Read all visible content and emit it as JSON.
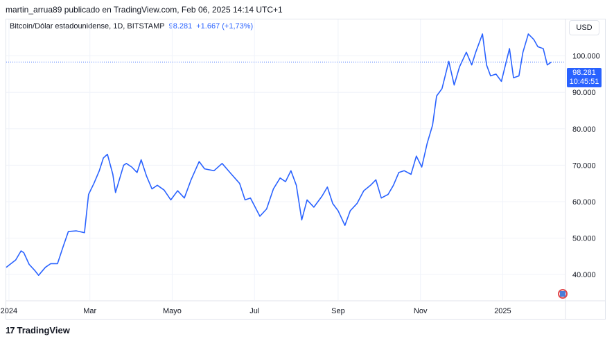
{
  "header": {
    "attribution": "martin_arrua89 publicado en TradingView.com, Feb 06, 2025 14:14 UTC+1"
  },
  "legend": {
    "symbol": "Bitcoin/Dólar estadounidense, 1D, BITSTAMP",
    "price": "98.281",
    "change": "+1.667 (+1,73%)"
  },
  "toolbar": {
    "currency": "USD"
  },
  "price_badge": {
    "price": "98.281",
    "countdown": "10:45:51"
  },
  "footer": {
    "logo_text": "TradingView"
  },
  "colors": {
    "line": "#2962ff",
    "grid": "#f0f3fa",
    "axis_text": "#131722"
  },
  "chart_data": {
    "type": "line",
    "title": "",
    "series": [
      {
        "name": "",
        "x": [
          "2023-12-30",
          "2024-01-06",
          "2024-01-10",
          "2024-01-12",
          "2024-01-16",
          "2024-01-20",
          "2024-01-23",
          "2024-01-28",
          "2024-02-01",
          "2024-02-06",
          "2024-02-10",
          "2024-02-14",
          "2024-02-20",
          "2024-02-26",
          "2024-02-29",
          "2024-03-04",
          "2024-03-08",
          "2024-03-11",
          "2024-03-14",
          "2024-03-18",
          "2024-03-20",
          "2024-03-26",
          "2024-03-28",
          "2024-04-01",
          "2024-04-05",
          "2024-04-08",
          "2024-04-12",
          "2024-04-16",
          "2024-04-20",
          "2024-04-25",
          "2024-04-30",
          "2024-05-05",
          "2024-05-10",
          "2024-05-15",
          "2024-05-21",
          "2024-05-25",
          "2024-06-01",
          "2024-06-07",
          "2024-06-14",
          "2024-06-20",
          "2024-06-24",
          "2024-06-28",
          "2024-07-05",
          "2024-07-10",
          "2024-07-15",
          "2024-07-20",
          "2024-07-24",
          "2024-07-28",
          "2024-08-01",
          "2024-08-05",
          "2024-08-09",
          "2024-08-14",
          "2024-08-20",
          "2024-08-24",
          "2024-08-28",
          "2024-09-01",
          "2024-09-06",
          "2024-09-10",
          "2024-09-15",
          "2024-09-20",
          "2024-09-25",
          "2024-09-29",
          "2024-10-03",
          "2024-10-08",
          "2024-10-12",
          "2024-10-16",
          "2024-10-20",
          "2024-10-25",
          "2024-10-29",
          "2024-11-02",
          "2024-11-06",
          "2024-11-10",
          "2024-11-13",
          "2024-11-17",
          "2024-11-22",
          "2024-11-26",
          "2024-11-30",
          "2024-12-05",
          "2024-12-09",
          "2024-12-12",
          "2024-12-17",
          "2024-12-20",
          "2024-12-23",
          "2024-12-27",
          "2024-12-31",
          "2025-01-06",
          "2025-01-09",
          "2025-01-13",
          "2025-01-16",
          "2025-01-20",
          "2025-01-24",
          "2025-01-27",
          "2025-01-31",
          "2025-02-03",
          "2025-02-06"
        ],
        "y": [
          42000,
          44000,
          46500,
          46000,
          42800,
          41200,
          39800,
          42000,
          43000,
          43000,
          47500,
          51800,
          52000,
          51500,
          62000,
          65000,
          68500,
          72000,
          73000,
          67500,
          62500,
          70000,
          70500,
          69500,
          68000,
          71500,
          67000,
          63500,
          64500,
          63200,
          60500,
          63000,
          61000,
          66000,
          71000,
          69000,
          68500,
          70500,
          67500,
          65000,
          60500,
          61000,
          56000,
          58000,
          63500,
          66500,
          65500,
          68500,
          64500,
          55000,
          60500,
          58500,
          61500,
          64000,
          59500,
          57500,
          53500,
          57500,
          59500,
          63000,
          64500,
          66000,
          61000,
          62000,
          64500,
          68000,
          68500,
          67500,
          72500,
          69500,
          76000,
          81000,
          89000,
          91000,
          98500,
          92000,
          97000,
          101000,
          97500,
          101000,
          106000,
          97500,
          94500,
          95000,
          93000,
          102000,
          94000,
          94500,
          101000,
          106000,
          104500,
          102500,
          102000,
          97500,
          98281
        ]
      }
    ],
    "x_tick_labels": [
      "2024",
      "Mar",
      "Mayo",
      "Jul",
      "Sep",
      "Nov",
      "2025"
    ],
    "y_ticks": [
      40000,
      50000,
      60000,
      70000,
      80000,
      90000,
      100000
    ],
    "y_tick_labels": [
      "40.000",
      "50.000",
      "60.000",
      "70.000",
      "80.000",
      "90.000",
      "100.000"
    ],
    "last_value": 98281,
    "xlabel": "",
    "ylabel": "",
    "grid": true,
    "ylim": [
      33000,
      110000
    ],
    "xlim": [
      "2023-12-30",
      "2025-02-16"
    ]
  }
}
